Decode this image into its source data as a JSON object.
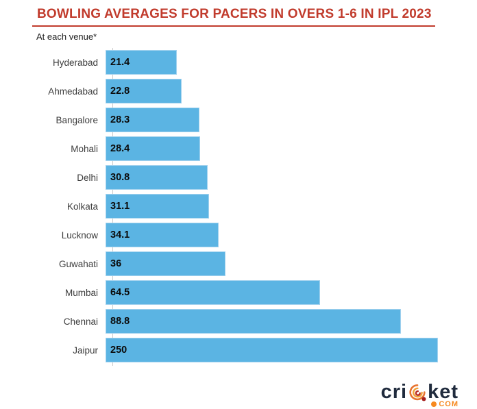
{
  "header": {
    "title": "BOWLING AVERAGES FOR PACERS IN OVERS 1-6 IN IPL 2023",
    "subtitle": "At each venue*",
    "title_color": "#C13B2C"
  },
  "chart_data": {
    "type": "bar",
    "orientation": "horizontal",
    "title": "BOWLING AVERAGES FOR PACERS IN OVERS 1-6 IN IPL 2023",
    "subtitle": "At each venue*",
    "categories": [
      "Hyderabad",
      "Ahmedabad",
      "Bangalore",
      "Mohali",
      "Delhi",
      "Kolkata",
      "Lucknow",
      "Guwahati",
      "Mumbai",
      "Chennai",
      "Jaipur"
    ],
    "values": [
      21.4,
      22.8,
      28.3,
      28.4,
      30.8,
      31.1,
      34.1,
      36,
      64.5,
      88.8,
      250
    ],
    "value_labels": [
      "21.4",
      "22.8",
      "28.3",
      "28.4",
      "30.8",
      "31.1",
      "34.1",
      "36",
      "64.5",
      "88.8",
      "250"
    ],
    "xlim": [
      0,
      100
    ],
    "bars_clipped_at_xmax": [
      "Jaipur"
    ],
    "bar_color": "#5BB4E3",
    "value_label_position": "inside-left",
    "grid": false,
    "legend": false
  },
  "footer": {
    "logo_text_left": "cri",
    "logo_text_right": "ket",
    "logo_domain": "COM",
    "logo_color": "#202B3D",
    "logo_accent_color": "#F6891F"
  }
}
